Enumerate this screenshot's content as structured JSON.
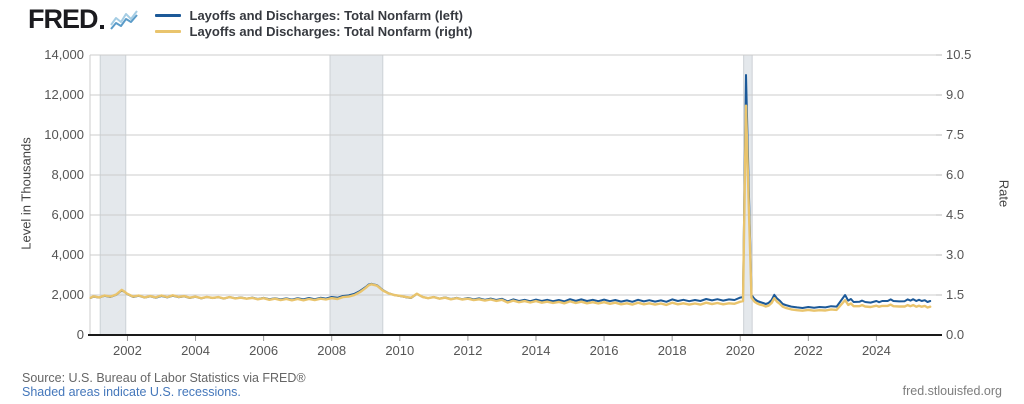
{
  "header": {
    "logo_text": "FRED",
    "legend": [
      {
        "label": "Layoffs and Discharges: Total Nonfarm (left)",
        "color": "#1c5998"
      },
      {
        "label": "Layoffs and Discharges: Total Nonfarm (right)",
        "color": "#e9c46d"
      }
    ]
  },
  "footer": {
    "source": "Source: U.S. Bureau of Labor Statistics via FRED®",
    "recession_note": "Shaded areas indicate U.S. recessions.",
    "site": "fred.stlouisfed.org"
  },
  "colors": {
    "series_left": "#1c5998",
    "series_right": "#e9c46d",
    "gridline": "#cccccc",
    "recession_band": "#e4e8ec",
    "axis_line": "#1a1a1a",
    "tick_text": "#555555"
  },
  "chart_data": {
    "type": "line",
    "title": "",
    "ylabel_left": "Level in Thousands",
    "ylabel_right": "Rate",
    "grid": true,
    "legend_position": "top",
    "x_range": [
      2000.9,
      2025.75
    ],
    "x_ticks": [
      2002,
      2004,
      2006,
      2008,
      2010,
      2012,
      2014,
      2016,
      2018,
      2020,
      2022,
      2024
    ],
    "y_left": {
      "min": 0,
      "max": 14000,
      "tick_values": [
        0,
        2000,
        4000,
        6000,
        8000,
        10000,
        12000,
        14000
      ],
      "tick_labels": [
        "0",
        "2,000",
        "4,000",
        "6,000",
        "8,000",
        "10,000",
        "12,000",
        "14,000"
      ]
    },
    "y_right": {
      "min": 0,
      "max": 10.5,
      "tick_values": [
        0,
        1.5,
        3,
        4.5,
        6,
        7.5,
        9,
        10.5
      ],
      "tick_labels": [
        "0.0",
        "1.5",
        "3.0",
        "4.5",
        "6.0",
        "7.5",
        "9.0",
        "10.5"
      ]
    },
    "recessions": [
      [
        2001.2,
        2001.95
      ],
      [
        2007.95,
        2009.5
      ],
      [
        2020.1,
        2020.35
      ]
    ],
    "x": [
      2000.92,
      2001.0,
      2001.17,
      2001.33,
      2001.5,
      2001.67,
      2001.83,
      2001.92,
      2002.0,
      2002.17,
      2002.33,
      2002.5,
      2002.67,
      2002.83,
      2003.0,
      2003.17,
      2003.33,
      2003.5,
      2003.67,
      2003.83,
      2004.0,
      2004.17,
      2004.33,
      2004.5,
      2004.67,
      2004.83,
      2005.0,
      2005.17,
      2005.33,
      2005.5,
      2005.67,
      2005.83,
      2006.0,
      2006.17,
      2006.33,
      2006.5,
      2006.67,
      2006.83,
      2007.0,
      2007.17,
      2007.33,
      2007.5,
      2007.67,
      2007.83,
      2008.0,
      2008.17,
      2008.33,
      2008.5,
      2008.67,
      2008.83,
      2009.0,
      2009.08,
      2009.17,
      2009.33,
      2009.5,
      2009.67,
      2009.83,
      2010.0,
      2010.17,
      2010.33,
      2010.5,
      2010.67,
      2010.83,
      2011.0,
      2011.17,
      2011.33,
      2011.5,
      2011.67,
      2011.83,
      2012.0,
      2012.17,
      2012.33,
      2012.5,
      2012.67,
      2012.83,
      2013.0,
      2013.17,
      2013.33,
      2013.5,
      2013.67,
      2013.83,
      2014.0,
      2014.17,
      2014.33,
      2014.5,
      2014.67,
      2014.83,
      2015.0,
      2015.17,
      2015.33,
      2015.5,
      2015.67,
      2015.83,
      2016.0,
      2016.17,
      2016.33,
      2016.5,
      2016.67,
      2016.83,
      2017.0,
      2017.17,
      2017.33,
      2017.5,
      2017.67,
      2017.83,
      2018.0,
      2018.17,
      2018.33,
      2018.5,
      2018.67,
      2018.83,
      2019.0,
      2019.17,
      2019.33,
      2019.5,
      2019.67,
      2019.83,
      2020.0,
      2020.08,
      2020.17,
      2020.25,
      2020.33,
      2020.42,
      2020.5,
      2020.58,
      2020.67,
      2020.75,
      2020.83,
      2020.92,
      2021.0,
      2021.08,
      2021.17,
      2021.25,
      2021.33,
      2021.5,
      2021.67,
      2021.83,
      2022.0,
      2022.17,
      2022.33,
      2022.5,
      2022.67,
      2022.83,
      2023.08,
      2023.17,
      2023.25,
      2023.33,
      2023.5,
      2023.58,
      2023.67,
      2023.83,
      2024.0,
      2024.08,
      2024.17,
      2024.33,
      2024.42,
      2024.5,
      2024.67,
      2024.83,
      2024.92,
      2025.0,
      2025.08,
      2025.17,
      2025.25,
      2025.33,
      2025.42,
      2025.5,
      2025.58
    ],
    "series": [
      {
        "name": "Layoffs and Discharges: Total Nonfarm (left)",
        "axis": "left",
        "color": "#1c5998",
        "units": "thousands",
        "values": [
          1850,
          1920,
          1870,
          1960,
          1900,
          2010,
          2230,
          2150,
          2040,
          1900,
          1960,
          1870,
          1930,
          1860,
          1950,
          1880,
          1960,
          1890,
          1930,
          1850,
          1910,
          1830,
          1900,
          1850,
          1890,
          1820,
          1900,
          1830,
          1880,
          1820,
          1870,
          1800,
          1860,
          1790,
          1840,
          1780,
          1830,
          1770,
          1840,
          1780,
          1850,
          1790,
          1860,
          1820,
          1900,
          1860,
          1950,
          1980,
          2060,
          2200,
          2400,
          2520,
          2560,
          2490,
          2250,
          2090,
          2000,
          1950,
          1890,
          1850,
          2050,
          1900,
          1840,
          1900,
          1820,
          1880,
          1800,
          1860,
          1790,
          1850,
          1780,
          1830,
          1760,
          1820,
          1750,
          1810,
          1680,
          1780,
          1700,
          1760,
          1690,
          1770,
          1700,
          1760,
          1690,
          1750,
          1680,
          1790,
          1710,
          1780,
          1700,
          1760,
          1690,
          1770,
          1690,
          1750,
          1670,
          1730,
          1660,
          1760,
          1680,
          1740,
          1670,
          1730,
          1660,
          1780,
          1700,
          1760,
          1690,
          1750,
          1700,
          1800,
          1730,
          1790,
          1720,
          1780,
          1750,
          1870,
          1900,
          13000,
          7300,
          2000,
          1800,
          1700,
          1650,
          1600,
          1550,
          1600,
          1750,
          2010,
          1830,
          1700,
          1550,
          1500,
          1420,
          1380,
          1350,
          1400,
          1360,
          1400,
          1380,
          1440,
          1420,
          2000,
          1720,
          1800,
          1650,
          1660,
          1720,
          1650,
          1620,
          1700,
          1640,
          1700,
          1700,
          1780,
          1700,
          1680,
          1690,
          1780,
          1720,
          1790,
          1700,
          1760,
          1700,
          1740,
          1650,
          1700
        ]
      },
      {
        "name": "Layoffs and Discharges: Total Nonfarm (right)",
        "axis": "right",
        "color": "#e9c46d",
        "units": "rate",
        "values": [
          1.4,
          1.45,
          1.41,
          1.48,
          1.44,
          1.52,
          1.69,
          1.62,
          1.54,
          1.44,
          1.48,
          1.41,
          1.46,
          1.41,
          1.48,
          1.42,
          1.49,
          1.43,
          1.46,
          1.4,
          1.44,
          1.38,
          1.43,
          1.39,
          1.42,
          1.37,
          1.42,
          1.37,
          1.4,
          1.36,
          1.39,
          1.34,
          1.38,
          1.32,
          1.36,
          1.31,
          1.35,
          1.3,
          1.35,
          1.3,
          1.35,
          1.31,
          1.36,
          1.33,
          1.38,
          1.35,
          1.42,
          1.44,
          1.5,
          1.61,
          1.77,
          1.86,
          1.9,
          1.85,
          1.67,
          1.56,
          1.5,
          1.47,
          1.43,
          1.4,
          1.55,
          1.43,
          1.38,
          1.42,
          1.36,
          1.4,
          1.34,
          1.38,
          1.33,
          1.36,
          1.31,
          1.34,
          1.29,
          1.33,
          1.28,
          1.32,
          1.22,
          1.29,
          1.23,
          1.27,
          1.22,
          1.27,
          1.21,
          1.25,
          1.2,
          1.24,
          1.19,
          1.26,
          1.2,
          1.25,
          1.19,
          1.23,
          1.18,
          1.23,
          1.17,
          1.21,
          1.15,
          1.19,
          1.14,
          1.21,
          1.15,
          1.19,
          1.14,
          1.18,
          1.13,
          1.21,
          1.15,
          1.19,
          1.14,
          1.18,
          1.14,
          1.21,
          1.16,
          1.2,
          1.15,
          1.19,
          1.17,
          1.25,
          1.27,
          8.6,
          4.8,
          1.4,
          1.25,
          1.18,
          1.14,
          1.11,
          1.07,
          1.1,
          1.2,
          1.38,
          1.25,
          1.16,
          1.06,
          1.02,
          0.96,
          0.93,
          0.91,
          0.94,
          0.91,
          0.93,
          0.92,
          0.96,
          0.94,
          1.31,
          1.13,
          1.18,
          1.08,
          1.08,
          1.12,
          1.07,
          1.05,
          1.1,
          1.06,
          1.09,
          1.09,
          1.14,
          1.08,
          1.07,
          1.07,
          1.12,
          1.08,
          1.12,
          1.06,
          1.1,
          1.06,
          1.09,
          1.03,
          1.06
        ]
      }
    ]
  }
}
